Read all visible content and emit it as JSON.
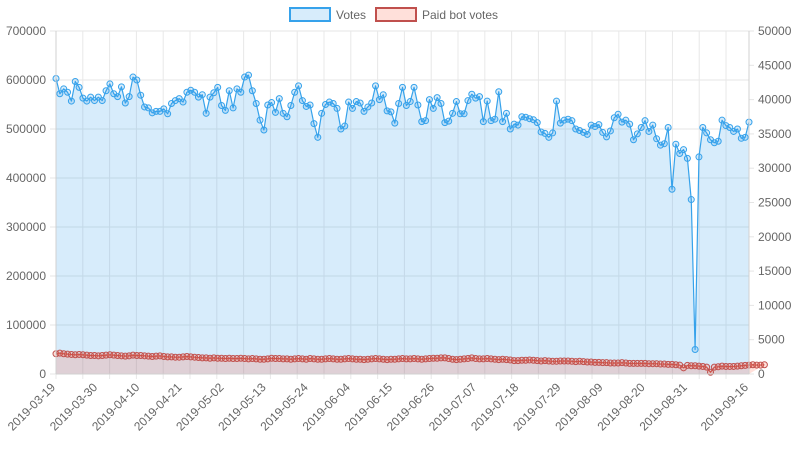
{
  "chart_data": {
    "type": "line",
    "legend_position": "top",
    "grid": true,
    "x_tick_labels": [
      "2019-03-19",
      "2019-03-30",
      "2019-04-10",
      "2019-04-21",
      "2019-05-02",
      "2019-05-13",
      "2019-05-24",
      "2019-06-04",
      "2019-06-15",
      "2019-06-26",
      "2019-07-07",
      "2019-07-18",
      "2019-07-29",
      "2019-08-09",
      "2019-08-20",
      "2019-08-31",
      "2019-09-16"
    ],
    "y_left": {
      "min": 0,
      "max": 700000,
      "step": 100000,
      "tick_labels": [
        "0",
        "100000",
        "200000",
        "300000",
        "400000",
        "500000",
        "600000",
        "700000"
      ]
    },
    "y_right": {
      "min": 0,
      "max": 50000,
      "step": 5000,
      "tick_labels": [
        "0",
        "5000",
        "10000",
        "15000",
        "20000",
        "25000",
        "30000",
        "35000",
        "40000",
        "45000",
        "50000"
      ]
    },
    "x_start": "2019-03-19",
    "x_end": "2019-09-16",
    "series": [
      {
        "name": "Votes",
        "axis": "left",
        "color": "#36a2eb",
        "fill": "rgba(54,162,235,0.2)",
        "values": [
          603000,
          572000,
          582000,
          575000,
          557000,
          597000,
          585000,
          563000,
          557000,
          565000,
          558000,
          565000,
          558000,
          578000,
          592000,
          572000,
          566000,
          586000,
          553000,
          566000,
          606000,
          600000,
          569000,
          545000,
          543000,
          533000,
          536000,
          536000,
          541000,
          531000,
          552000,
          558000,
          562000,
          555000,
          575000,
          579000,
          575000,
          565000,
          570000,
          532000,
          565000,
          574000,
          585000,
          548000,
          538000,
          578000,
          543000,
          582000,
          575000,
          606000,
          610000,
          578000,
          552000,
          518000,
          498000,
          549000,
          554000,
          534000,
          562000,
          532000,
          525000,
          548000,
          575000,
          588000,
          558000,
          546000,
          549000,
          511000,
          483000,
          532000,
          550000,
          555000,
          552000,
          542000,
          500000,
          506000,
          555000,
          542000,
          556000,
          553000,
          536000,
          545000,
          553000,
          588000,
          560000,
          570000,
          537000,
          535000,
          512000,
          552000,
          585000,
          548000,
          556000,
          585000,
          549000,
          515000,
          517000,
          560000,
          542000,
          564000,
          552000,
          513000,
          516000,
          532000,
          556000,
          531000,
          531000,
          558000,
          571000,
          563000,
          566000,
          515000,
          557000,
          517000,
          520000,
          576000,
          515000,
          532000,
          500000,
          510000,
          508000,
          525000,
          524000,
          521000,
          519000,
          513000,
          494000,
          491000,
          483000,
          492000,
          557000,
          512000,
          518000,
          520000,
          517000,
          500000,
          497000,
          493000,
          489000,
          508000,
          505000,
          509000,
          493000,
          484000,
          496000,
          523000,
          530000,
          514000,
          518000,
          510000,
          478000,
          490000,
          503000,
          517000,
          495000,
          508000,
          480000,
          467000,
          470000,
          503000,
          377000,
          469000,
          450000,
          458000,
          440000,
          356000,
          50000,
          443000,
          503000,
          492000,
          478000,
          472000,
          475000,
          518000,
          507000,
          503000,
          495000,
          500000,
          481000,
          483000,
          514000
        ]
      },
      {
        "name": "Paid bot votes",
        "axis": "right",
        "color": "#c0504d",
        "fill": "rgba(255,99,71,0.2)",
        "values": [
          2950,
          3050,
          2950,
          2900,
          2850,
          2800,
          2850,
          2800,
          2750,
          2700,
          2700,
          2650,
          2700,
          2750,
          2800,
          2750,
          2700,
          2650,
          2600,
          2650,
          2750,
          2700,
          2700,
          2650,
          2600,
          2550,
          2600,
          2650,
          2550,
          2500,
          2500,
          2450,
          2450,
          2500,
          2550,
          2500,
          2450,
          2400,
          2350,
          2350,
          2300,
          2350,
          2300,
          2300,
          2250,
          2300,
          2250,
          2250,
          2300,
          2250,
          2200,
          2250,
          2200,
          2150,
          2150,
          2200,
          2300,
          2250,
          2250,
          2200,
          2200,
          2150,
          2200,
          2250,
          2200,
          2150,
          2250,
          2200,
          2150,
          2150,
          2200,
          2250,
          2200,
          2150,
          2150,
          2200,
          2250,
          2200,
          2150,
          2150,
          2100,
          2150,
          2200,
          2250,
          2200,
          2150,
          2100,
          2150,
          2150,
          2200,
          2250,
          2200,
          2200,
          2250,
          2200,
          2150,
          2200,
          2250,
          2300,
          2300,
          2350,
          2350,
          2250,
          2150,
          2100,
          2150,
          2200,
          2250,
          2350,
          2250,
          2200,
          2200,
          2250,
          2200,
          2150,
          2100,
          2150,
          2100,
          2050,
          1950,
          1950,
          2000,
          2000,
          2050,
          2000,
          1950,
          1900,
          1950,
          1900,
          1850,
          1850,
          1900,
          1900,
          1900,
          1850,
          1800,
          1850,
          1800,
          1750,
          1750,
          1700,
          1700,
          1650,
          1650,
          1600,
          1600,
          1600,
          1650,
          1600,
          1550,
          1550,
          1550,
          1550,
          1550,
          1500,
          1500,
          1500,
          1450,
          1450,
          1400,
          1400,
          1350,
          1300,
          900,
          1250,
          1200,
          1200,
          1150,
          1100,
          1000,
          250,
          1000,
          1050,
          1150,
          1100,
          1100,
          1100,
          1150,
          1200,
          1250,
          1300,
          1350,
          1300,
          1300,
          1350
        ]
      }
    ]
  }
}
